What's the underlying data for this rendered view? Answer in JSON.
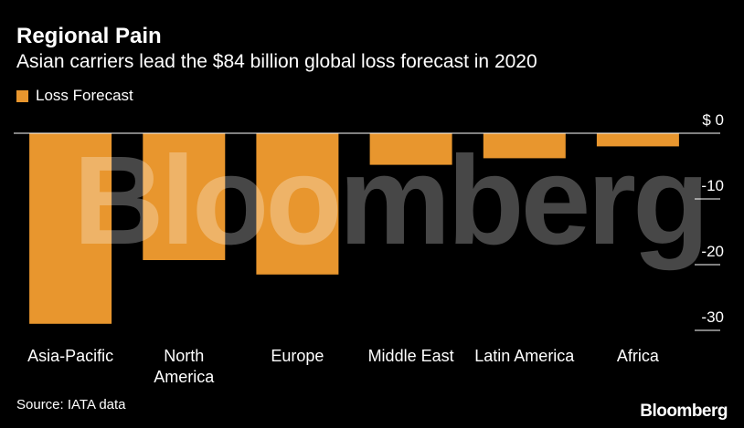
{
  "header": {
    "title": "Regional Pain",
    "subtitle": "Asian carriers lead the $84 billion global loss forecast in 2020"
  },
  "footer": {
    "source": "Source: IATA data",
    "brand": "Bloomberg"
  },
  "watermark": "Bloomberg",
  "colors": {
    "background": "#000000",
    "bar": "#E8962E",
    "text": "#ffffff",
    "axis": "#ffffff"
  },
  "chart_data": {
    "type": "bar",
    "orientation": "vertical",
    "title": "Regional Pain",
    "subtitle": "Asian carriers lead the $84 billion global loss forecast in 2020",
    "categories": [
      "Asia-Pacific",
      "North America",
      "Europe",
      "Middle East",
      "Latin America",
      "Africa"
    ],
    "category_labels": [
      [
        "Asia-Pacific"
      ],
      [
        "North",
        "America"
      ],
      [
        "Europe"
      ],
      [
        "Middle East"
      ],
      [
        "Latin America"
      ],
      [
        "Africa"
      ]
    ],
    "series": [
      {
        "name": "Loss Forecast",
        "values": [
          -29,
          -19.3,
          -21.5,
          -4.8,
          -3.8,
          -2
        ]
      }
    ],
    "ylim": [
      -30,
      0
    ],
    "y_ticks": [
      0,
      -10,
      -20,
      -30
    ],
    "y_tick_labels": [
      "$ 0",
      "-10",
      "-20",
      "-30"
    ],
    "y_axis_position": "right",
    "legend_position": "top-left",
    "grid": false,
    "xlabel": "",
    "ylabel": ""
  }
}
